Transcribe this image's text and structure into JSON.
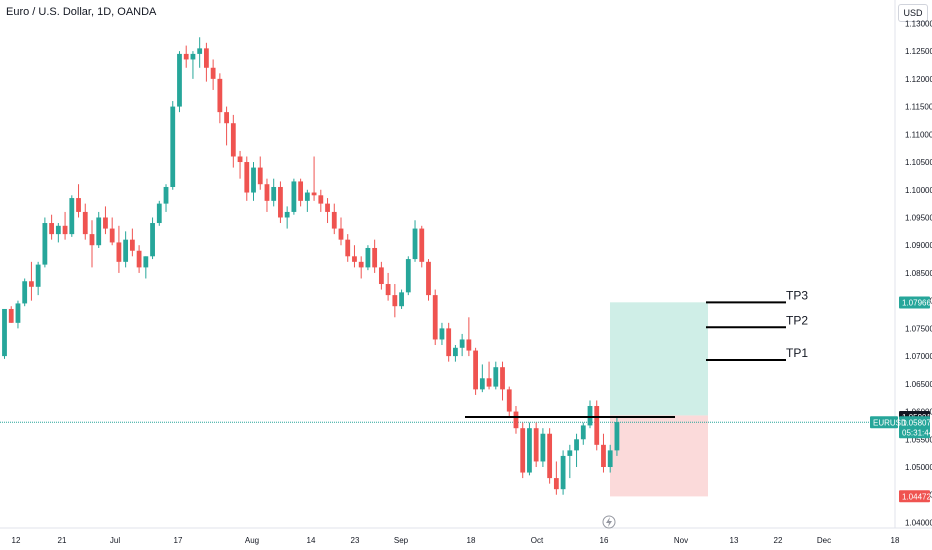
{
  "header": {
    "title": "Euro / U.S. Dollar, 1D, OANDA",
    "currency": "USD"
  },
  "colors": {
    "up": "#26a69a",
    "down": "#ef5350",
    "profit_zone": "#cfeee7",
    "loss_zone": "#fbdada",
    "price_line": "#26a69a"
  },
  "chart_data": {
    "type": "candlestick",
    "symbol": "EURUSD",
    "y_ticks": [
      "1.04000",
      "1.04500",
      "1.05000",
      "1.05500",
      "1.06000",
      "1.06500",
      "1.07000",
      "1.07500",
      "1.08000",
      "1.08500",
      "1.09000",
      "1.09500",
      "1.10000",
      "1.10500",
      "1.11000",
      "1.11500",
      "1.12000",
      "1.12500",
      "1.13000"
    ],
    "x_ticks": [
      "12",
      "21",
      "Jul",
      "17",
      "Aug",
      "14",
      "23",
      "Sep",
      "18",
      "Oct",
      "16",
      "Nov",
      "13",
      "22",
      "Dec",
      "18"
    ],
    "ylim": [
      1.039,
      1.1335
    ],
    "candles": [
      [
        1.07,
        1.0785,
        1.0695,
        1.0785
      ],
      [
        1.0785,
        1.079,
        1.076,
        1.076
      ],
      [
        1.076,
        1.08,
        1.075,
        1.0795
      ],
      [
        1.0795,
        1.084,
        1.079,
        1.0835
      ],
      [
        1.0835,
        1.087,
        1.08,
        1.0825
      ],
      [
        1.0825,
        1.087,
        1.081,
        1.0865
      ],
      [
        1.0865,
        1.095,
        1.086,
        1.094
      ],
      [
        1.094,
        1.0955,
        1.091,
        1.092
      ],
      [
        1.092,
        1.094,
        1.0905,
        1.0935
      ],
      [
        1.0935,
        1.096,
        1.091,
        1.092
      ],
      [
        1.092,
        1.099,
        1.0915,
        1.0985
      ],
      [
        1.0985,
        1.101,
        1.095,
        1.096
      ],
      [
        1.096,
        1.0975,
        1.091,
        1.092
      ],
      [
        1.092,
        1.0945,
        1.086,
        1.09
      ],
      [
        1.09,
        1.096,
        1.0895,
        1.095
      ],
      [
        1.095,
        1.097,
        1.092,
        1.093
      ],
      [
        1.093,
        1.095,
        1.09,
        1.0905
      ],
      [
        1.0905,
        1.0935,
        1.085,
        1.087
      ],
      [
        1.087,
        1.0925,
        1.086,
        1.091
      ],
      [
        1.091,
        1.093,
        1.088,
        1.089
      ],
      [
        1.089,
        1.09,
        1.085,
        1.086
      ],
      [
        1.086,
        1.088,
        1.084,
        1.088
      ],
      [
        1.088,
        1.095,
        1.0875,
        1.094
      ],
      [
        1.094,
        1.098,
        1.0935,
        1.0975
      ],
      [
        1.0975,
        1.101,
        1.096,
        1.1005
      ],
      [
        1.1005,
        1.116,
        1.1,
        1.115
      ],
      [
        1.115,
        1.125,
        1.114,
        1.1245
      ],
      [
        1.1245,
        1.126,
        1.122,
        1.1235
      ],
      [
        1.1235,
        1.125,
        1.12,
        1.1245
      ],
      [
        1.1245,
        1.1275,
        1.122,
        1.1255
      ],
      [
        1.1255,
        1.1265,
        1.1195,
        1.122
      ],
      [
        1.122,
        1.1235,
        1.118,
        1.12
      ],
      [
        1.12,
        1.121,
        1.112,
        1.114
      ],
      [
        1.114,
        1.115,
        1.108,
        1.112
      ],
      [
        1.112,
        1.1135,
        1.104,
        1.106
      ],
      [
        1.106,
        1.107,
        1.102,
        1.105
      ],
      [
        1.105,
        1.106,
        1.098,
        1.0995
      ],
      [
        1.0995,
        1.105,
        1.098,
        1.104
      ],
      [
        1.104,
        1.106,
        1.1,
        1.101
      ],
      [
        1.101,
        1.102,
        1.096,
        1.098
      ],
      [
        1.098,
        1.102,
        1.097,
        1.1005
      ],
      [
        1.1005,
        1.1015,
        1.094,
        1.095
      ],
      [
        1.095,
        1.097,
        1.093,
        1.096
      ],
      [
        1.096,
        1.102,
        1.0955,
        1.1015
      ],
      [
        1.1015,
        1.102,
        1.097,
        1.098
      ],
      [
        1.098,
        1.1,
        1.096,
        1.0995
      ],
      [
        1.0995,
        1.106,
        1.098,
        1.099
      ],
      [
        1.099,
        1.1,
        1.096,
        1.0975
      ],
      [
        1.0975,
        1.0985,
        1.094,
        1.096
      ],
      [
        1.096,
        1.0975,
        1.092,
        1.093
      ],
      [
        1.093,
        1.095,
        1.09,
        1.091
      ],
      [
        1.091,
        1.092,
        1.087,
        1.088
      ],
      [
        1.088,
        1.09,
        1.086,
        1.087
      ],
      [
        1.087,
        1.088,
        1.084,
        1.086
      ],
      [
        1.086,
        1.09,
        1.0855,
        1.0895
      ],
      [
        1.0895,
        1.091,
        1.085,
        1.086
      ],
      [
        1.086,
        1.087,
        1.082,
        1.083
      ],
      [
        1.083,
        1.085,
        1.08,
        1.081
      ],
      [
        1.081,
        1.083,
        1.077,
        1.079
      ],
      [
        1.079,
        1.082,
        1.0785,
        1.0815
      ],
      [
        1.0815,
        1.088,
        1.081,
        1.0875
      ],
      [
        1.0875,
        1.0945,
        1.087,
        1.093
      ],
      [
        1.093,
        1.0935,
        1.086,
        1.087
      ],
      [
        1.087,
        1.0875,
        1.08,
        1.081
      ],
      [
        1.081,
        1.082,
        1.072,
        1.073
      ],
      [
        1.073,
        1.076,
        1.072,
        1.075
      ],
      [
        1.075,
        1.076,
        1.069,
        1.07
      ],
      [
        1.07,
        1.072,
        1.069,
        1.0715
      ],
      [
        1.0715,
        1.074,
        1.07,
        1.073
      ],
      [
        1.073,
        1.077,
        1.07,
        1.071
      ],
      [
        1.071,
        1.0715,
        1.063,
        1.064
      ],
      [
        1.064,
        1.0685,
        1.0635,
        1.066
      ],
      [
        1.066,
        1.069,
        1.064,
        1.0645
      ],
      [
        1.0645,
        1.069,
        1.064,
        1.068
      ],
      [
        1.068,
        1.069,
        1.062,
        1.064
      ],
      [
        1.064,
        1.0645,
        1.059,
        1.06
      ],
      [
        1.06,
        1.061,
        1.056,
        1.057
      ],
      [
        1.057,
        1.058,
        1.048,
        1.049
      ],
      [
        1.049,
        1.058,
        1.0485,
        1.057
      ],
      [
        1.057,
        1.058,
        1.05,
        1.051
      ],
      [
        1.051,
        1.057,
        1.05,
        1.056
      ],
      [
        1.056,
        1.057,
        1.047,
        1.048
      ],
      [
        1.048,
        1.051,
        1.045,
        1.046
      ],
      [
        1.046,
        1.053,
        1.045,
        1.052
      ],
      [
        1.052,
        1.054,
        1.048,
        1.053
      ],
      [
        1.053,
        1.056,
        1.05,
        1.055
      ],
      [
        1.055,
        1.058,
        1.054,
        1.0575
      ],
      [
        1.0575,
        1.062,
        1.057,
        1.061
      ],
      [
        1.061,
        1.062,
        1.053,
        1.054
      ],
      [
        1.054,
        1.056,
        1.049,
        1.05
      ],
      [
        1.05,
        1.054,
        1.049,
        1.053
      ],
      [
        1.053,
        1.059,
        1.052,
        1.0581
      ]
    ],
    "current_price": "1.05807",
    "countdown": "05:31:44",
    "key_level": "1.05901",
    "take_profit": "1.07966",
    "stop_loss": "1.04472",
    "tp_lines": [
      {
        "label": "TP3",
        "price": 1.0797
      },
      {
        "label": "TP2",
        "price": 1.0752
      },
      {
        "label": "TP1",
        "price": 1.0693
      }
    ],
    "profit_zone": {
      "top": 1.0797,
      "bottom": 1.0593
    },
    "loss_zone": {
      "top": 1.0593,
      "bottom": 1.0447
    }
  }
}
